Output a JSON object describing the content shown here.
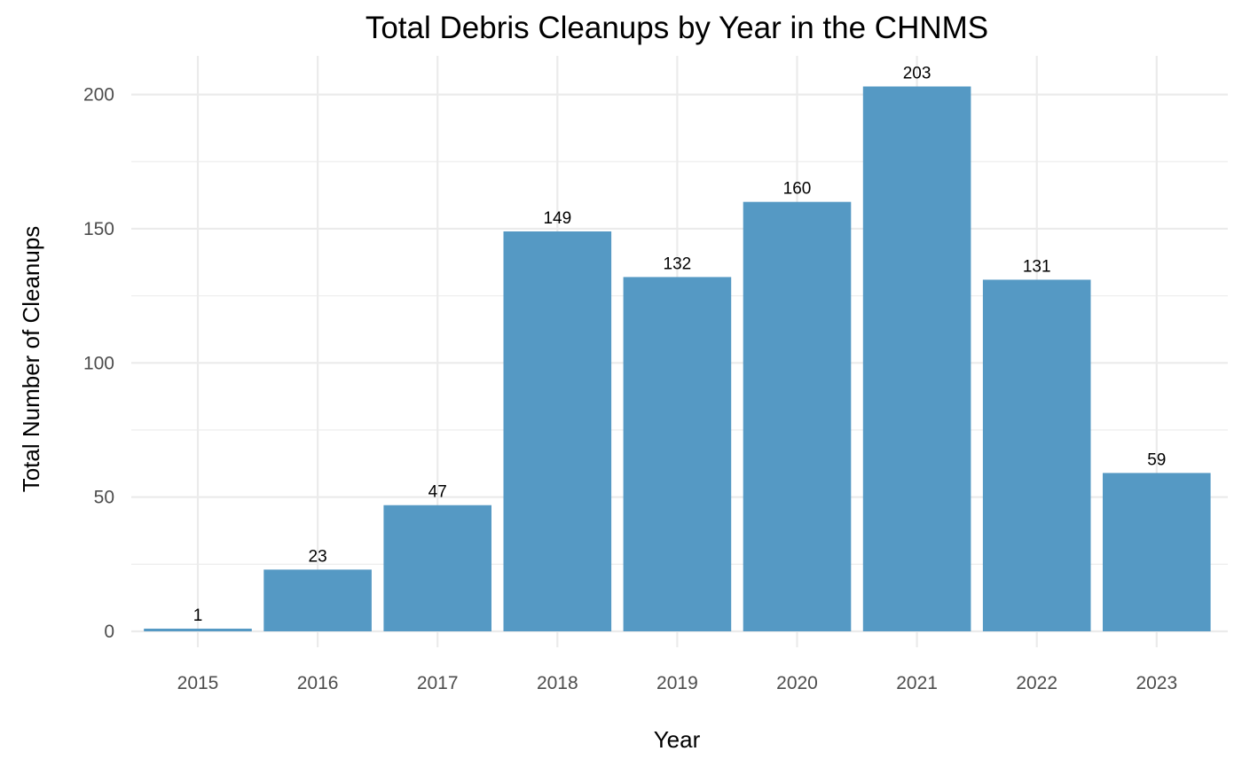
{
  "chart_data": {
    "type": "bar",
    "title": "Total Debris Cleanups by Year in the CHNMS",
    "xlabel": "Year",
    "ylabel": "Total Number of Cleanups",
    "categories": [
      "2015",
      "2016",
      "2017",
      "2018",
      "2019",
      "2020",
      "2021",
      "2022",
      "2023"
    ],
    "values": [
      1,
      23,
      47,
      149,
      132,
      160,
      203,
      131,
      59
    ],
    "data_labels": [
      "1",
      "23",
      "47",
      "149",
      "132",
      "160",
      "203",
      "131",
      "59"
    ],
    "y_ticks": [
      0,
      50,
      100,
      150,
      200
    ],
    "y_tick_labels": [
      "0",
      "50",
      "100",
      "150",
      "200"
    ],
    "ylim": [
      0,
      213.15
    ],
    "grid": true,
    "legend": "none",
    "bar_color": "#5599C4"
  }
}
